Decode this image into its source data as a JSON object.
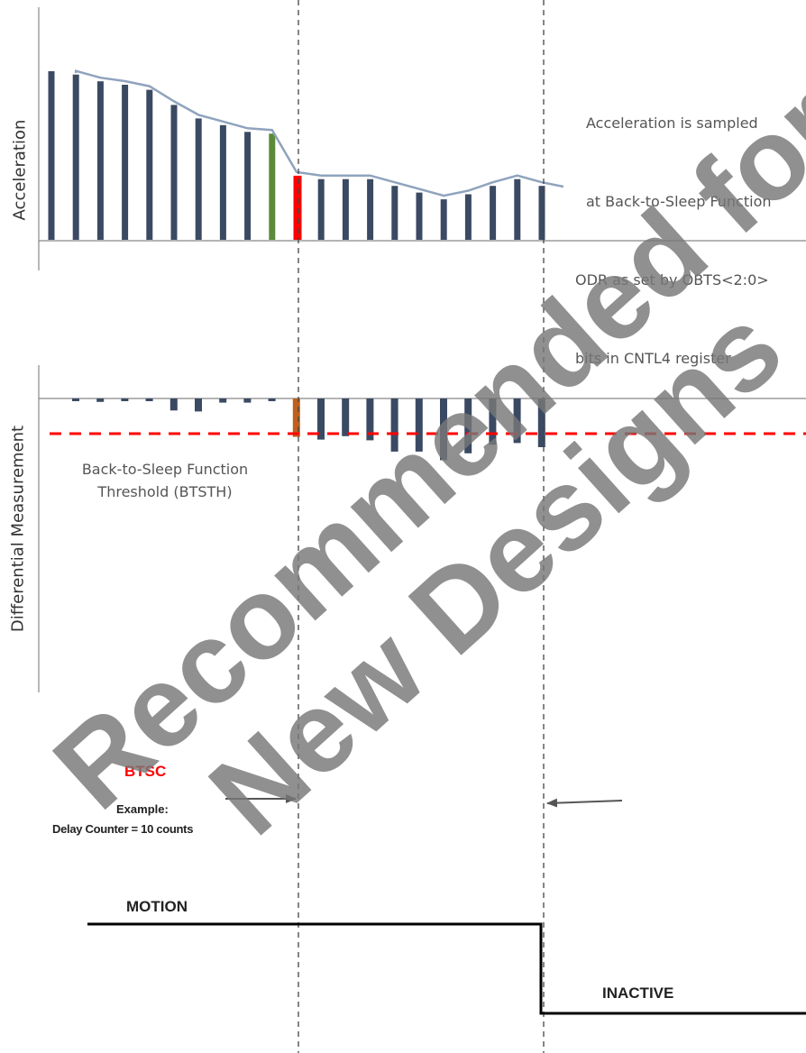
{
  "acceleration_panel": {
    "axis_label": "Acceleration",
    "note_lines": [
      "Acceleration is sampled",
      "at Back-to-Sleep Function",
      "ODR as set by OBTS<2:0>",
      "bits in CNTL4 register"
    ],
    "samples": [
      {
        "value": 1.0,
        "color": "#3b4a63"
      },
      {
        "value": 0.98,
        "color": "#3b4a63"
      },
      {
        "value": 0.94,
        "color": "#3b4a63"
      },
      {
        "value": 0.92,
        "color": "#3b4a63"
      },
      {
        "value": 0.89,
        "color": "#3b4a63"
      },
      {
        "value": 0.8,
        "color": "#3b4a63"
      },
      {
        "value": 0.72,
        "color": "#3b4a63"
      },
      {
        "value": 0.68,
        "color": "#3b4a63"
      },
      {
        "value": 0.64,
        "color": "#3b4a63"
      },
      {
        "value": 0.63,
        "color": "#5b8a3a"
      },
      {
        "value": 0.38,
        "color": "#ff0000"
      },
      {
        "value": 0.36,
        "color": "#3b4a63"
      },
      {
        "value": 0.36,
        "color": "#3b4a63"
      },
      {
        "value": 0.36,
        "color": "#3b4a63"
      },
      {
        "value": 0.32,
        "color": "#3b4a63"
      },
      {
        "value": 0.28,
        "color": "#3b4a63"
      },
      {
        "value": 0.24,
        "color": "#3b4a63"
      },
      {
        "value": 0.27,
        "color": "#3b4a63"
      },
      {
        "value": 0.32,
        "color": "#3b4a63"
      },
      {
        "value": 0.36,
        "color": "#3b4a63"
      },
      {
        "value": 0.32,
        "color": "#3b4a63"
      }
    ],
    "trend_color": "#8fa3bd"
  },
  "differential_panel": {
    "axis_label": "Differential Measurement",
    "threshold_label_line1": "Back-to-Sleep Function",
    "threshold_label_line2": "Threshold (BTSTH)",
    "threshold_color": "#ff0000",
    "samples": [
      {
        "value": 0.05,
        "color": "#3b4a63"
      },
      {
        "value": 0.1,
        "color": "#3b4a63"
      },
      {
        "value": 0.05,
        "color": "#3b4a63"
      },
      {
        "value": 0.05,
        "color": "#3b4a63"
      },
      {
        "value": 0.35,
        "color": "#3b4a63"
      },
      {
        "value": 0.38,
        "color": "#3b4a63"
      },
      {
        "value": 0.12,
        "color": "#3b4a63"
      },
      {
        "value": 0.12,
        "color": "#3b4a63"
      },
      {
        "value": 0.05,
        "color": "#3b4a63"
      },
      {
        "value": 1.12,
        "color": "#c0601c"
      },
      {
        "value": 1.2,
        "color": "#3b4a63"
      },
      {
        "value": 1.1,
        "color": "#3b4a63"
      },
      {
        "value": 1.22,
        "color": "#3b4a63"
      },
      {
        "value": 1.55,
        "color": "#3b4a63"
      },
      {
        "value": 1.55,
        "color": "#3b4a63"
      },
      {
        "value": 1.8,
        "color": "#3b4a63"
      },
      {
        "value": 1.6,
        "color": "#3b4a63"
      },
      {
        "value": 1.35,
        "color": "#3b4a63"
      },
      {
        "value": 1.3,
        "color": "#3b4a63"
      },
      {
        "value": 1.42,
        "color": "#3b4a63"
      }
    ]
  },
  "counter_section": {
    "btsc_label": "BTSC",
    "btsc_color": "#ff0000",
    "example_line1": "Example:",
    "example_line2": "Delay Counter = 10 counts"
  },
  "state_section": {
    "motion_label": "MOTION",
    "inactive_label": "INACTIVE"
  },
  "watermark": {
    "line1": "Recommended for",
    "line2": "New Designs"
  }
}
